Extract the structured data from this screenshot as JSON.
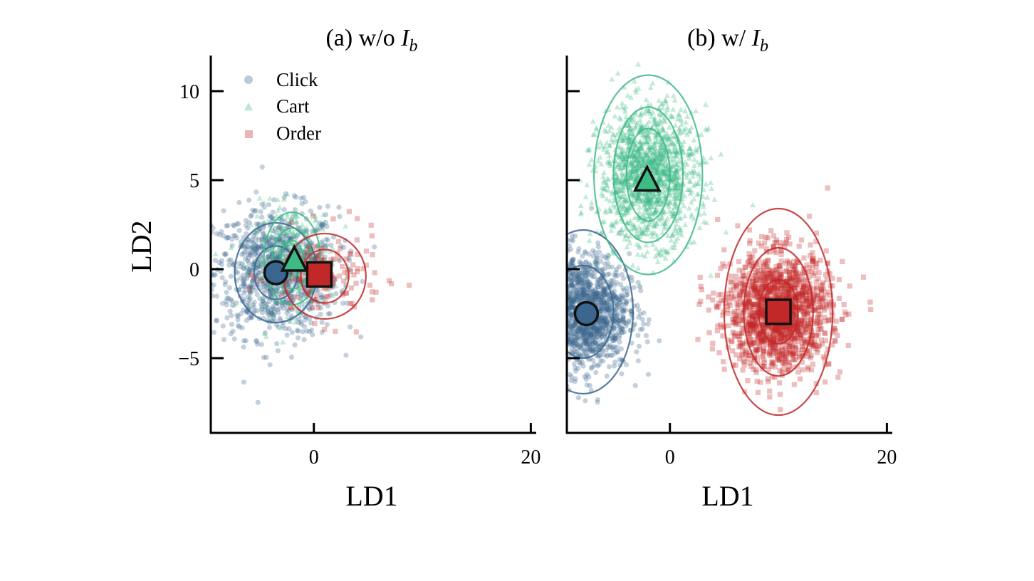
{
  "chart_data": [
    {
      "type": "scatter",
      "title_prefix": "(a) w/o ",
      "title_italic": "I",
      "title_sub": "b",
      "xlabel": "LD1",
      "ylabel": "LD2",
      "xlim": [
        -9.5,
        20.5
      ],
      "ylim": [
        -9.2,
        12.0
      ],
      "xticks": [
        0,
        20
      ],
      "yticks": [
        -5,
        0,
        5,
        10
      ],
      "ytick_labels": [
        "−5",
        "0",
        "5",
        "10"
      ],
      "legend": {
        "placement": "top-left",
        "entries": [
          "Click",
          "Cart",
          "Order"
        ]
      },
      "series": [
        {
          "name": "Click",
          "marker": "circle",
          "color": "#3a6690",
          "center": [
            -3.5,
            -0.2
          ],
          "spread": [
            4.6,
            2.9
          ],
          "n": 950,
          "mean_marker": [
            -3.5,
            -0.2
          ],
          "contours": [
            [
              3.8,
              2.8
            ],
            [
              2.0,
              1.5
            ]
          ]
        },
        {
          "name": "Cart",
          "marker": "triangle",
          "color": "#3dbb84",
          "center": [
            -2.0,
            0.6
          ],
          "spread": [
            3.0,
            2.4
          ],
          "n": 260,
          "mean_marker": [
            -1.8,
            0.4
          ],
          "contours": [
            [
              2.6,
              2.6
            ],
            [
              1.8,
              1.7
            ],
            [
              1.0,
              1.0
            ]
          ]
        },
        {
          "name": "Order",
          "marker": "square",
          "color": "#c22828",
          "center": [
            1.0,
            -0.4
          ],
          "spread": [
            4.2,
            2.0
          ],
          "n": 150,
          "mean_marker": [
            0.5,
            -0.3
          ],
          "contours": [
            [
              3.8,
              2.4
            ],
            [
              2.2,
              1.5
            ]
          ]
        }
      ]
    },
    {
      "type": "scatter",
      "title_prefix": "(b) w/ ",
      "title_italic": "I",
      "title_sub": "b",
      "xlabel": "LD1",
      "ylabel": "",
      "xlim": [
        -9.5,
        20.5
      ],
      "ylim": [
        -9.2,
        12.0
      ],
      "xticks": [
        0,
        20
      ],
      "yticks": [
        -5,
        0,
        5,
        10
      ],
      "ytick_labels": [
        "",
        "",
        "",
        ""
      ],
      "series": [
        {
          "name": "Click",
          "marker": "circle",
          "color": "#3a6690",
          "center": [
            -8.0,
            -2.4
          ],
          "spread": [
            3.4,
            2.6
          ],
          "n": 1500,
          "mean_marker": [
            -7.7,
            -2.5
          ],
          "contours": [
            [
              4.6,
              4.6
            ],
            [
              2.8,
              2.6
            ]
          ]
        },
        {
          "name": "Cart",
          "marker": "triangle",
          "color": "#3dbb84",
          "center": [
            -2.0,
            5.3
          ],
          "spread": [
            3.6,
            3.0
          ],
          "n": 1500,
          "mean_marker": [
            -2.1,
            4.9
          ],
          "contours": [
            [
              5.0,
              5.6
            ],
            [
              3.2,
              3.8
            ],
            [
              2.0,
              2.6
            ]
          ]
        },
        {
          "name": "Order",
          "marker": "square",
          "color": "#c22828",
          "center": [
            10.0,
            -2.4
          ],
          "spread": [
            3.8,
            2.6
          ],
          "n": 1600,
          "mean_marker": [
            10.0,
            -2.4
          ],
          "contours": [
            [
              5.0,
              5.8
            ],
            [
              3.2,
              3.6
            ],
            [
              1.8,
              1.8
            ]
          ]
        }
      ]
    }
  ]
}
